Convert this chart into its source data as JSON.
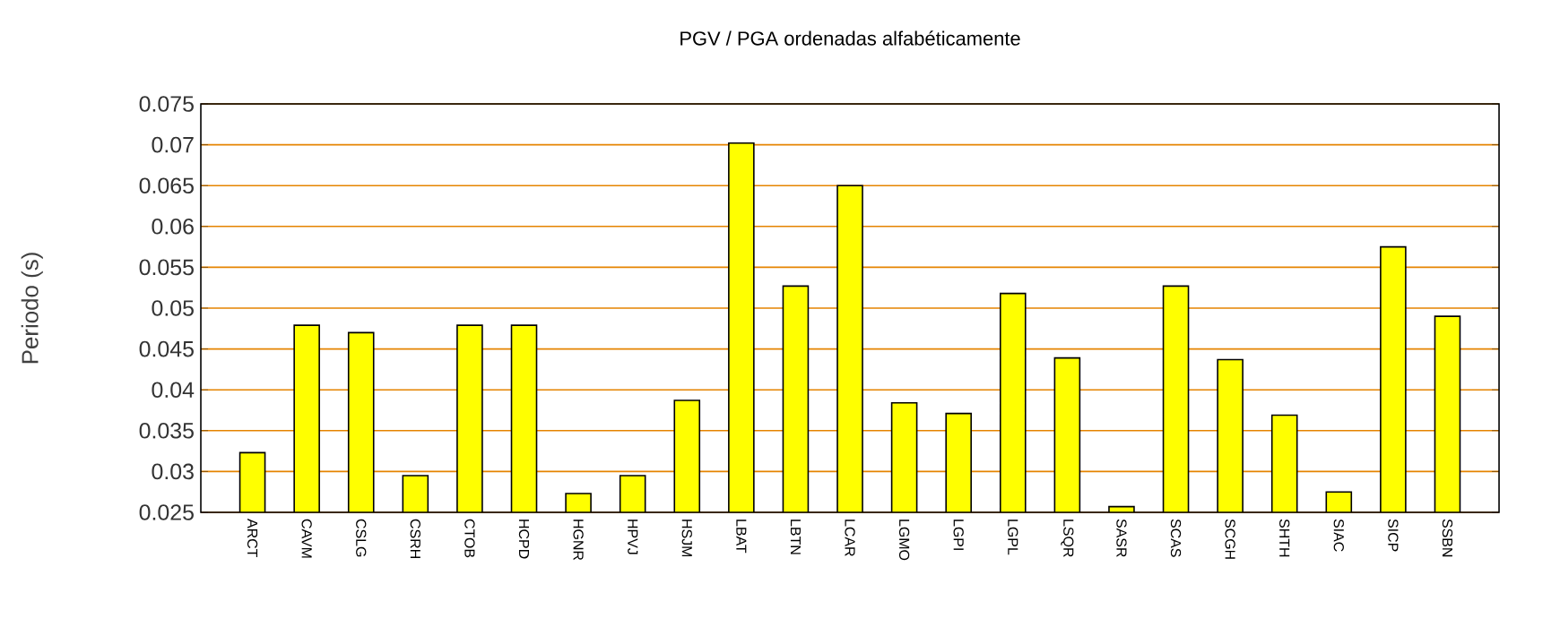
{
  "chart_data": {
    "type": "bar",
    "title": "PGV / PGA ordenadas alfabéticamente",
    "ylabel": "Periodo (s)",
    "categories": [
      "ARCT",
      "CAVM",
      "CSLG",
      "CSRH",
      "CTOB",
      "HCPD",
      "HGNR",
      "HPVJ",
      "HSJM",
      "LBAT",
      "LBTN",
      "LCAR",
      "LGMO",
      "LGPI",
      "LGPL",
      "LSQR",
      "SASR",
      "SCAS",
      "SCGH",
      "SHTH",
      "SIAC",
      "SICP",
      "SSBN"
    ],
    "values": [
      0.0323,
      0.0479,
      0.047,
      0.0295,
      0.0479,
      0.0479,
      0.0273,
      0.0295,
      0.0387,
      0.0702,
      0.0527,
      0.065,
      0.0384,
      0.0371,
      0.0518,
      0.0439,
      0.0257,
      0.0527,
      0.0437,
      0.0369,
      0.0275,
      0.0575,
      0.049
    ],
    "color": "#ffff00",
    "ylim": [
      0.025,
      0.075
    ],
    "yticks": [
      0.025,
      0.03,
      0.035,
      0.04,
      0.045,
      0.05,
      0.055,
      0.06,
      0.065,
      0.07,
      0.075
    ],
    "grid": "y"
  }
}
